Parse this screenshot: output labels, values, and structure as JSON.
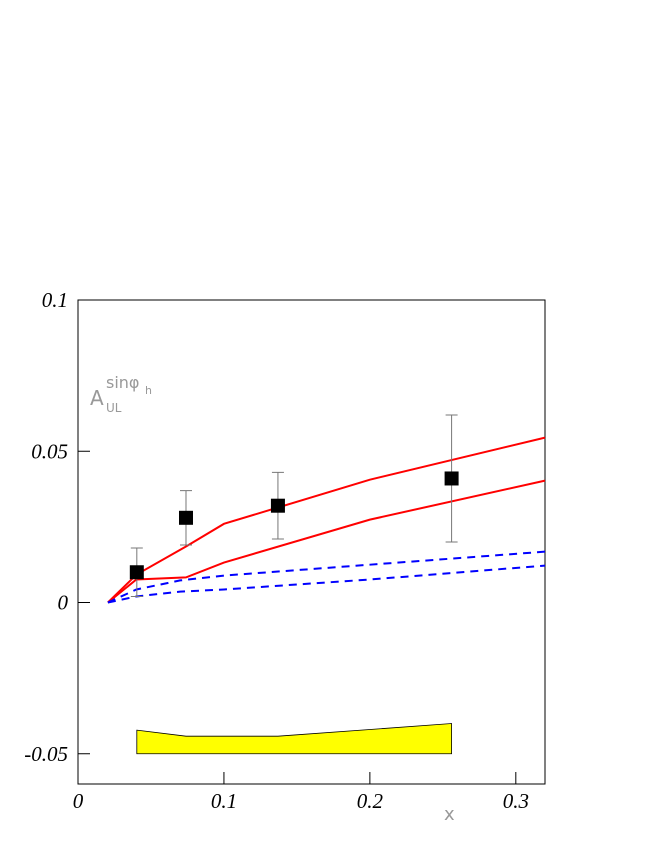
{
  "chart_data": {
    "type": "line",
    "y_label": {
      "base": "A",
      "sup": "sinφ",
      "sup_sub": "h",
      "sub": "UL"
    },
    "x_label": "x",
    "xlim": [
      0,
      0.32
    ],
    "ylim": [
      -0.06,
      0.1
    ],
    "xticks": [
      0,
      0.1,
      0.2,
      0.3
    ],
    "yticks": [
      -0.05,
      0,
      0.05,
      0.1
    ],
    "series": [
      {
        "color": "#ff0000",
        "dash": false,
        "x": [
          0.0205,
          0.04,
          0.074,
          0.1,
          0.2,
          0.32
        ],
        "values": [
          0,
          0.0092,
          0.0185,
          0.026,
          0.0406,
          0.0545
        ]
      },
      {
        "color": "#ff0000",
        "dash": false,
        "x": [
          0.0205,
          0.04,
          0.074,
          0.1,
          0.2,
          0.32
        ],
        "values": [
          0,
          0.0076,
          0.0083,
          0.0132,
          0.0274,
          0.0403
        ]
      },
      {
        "color": "#0000ff",
        "dash": true,
        "x": [
          0.0205,
          0.04,
          0.07,
          0.1,
          0.2,
          0.32
        ],
        "values": [
          0,
          0.0043,
          0.0073,
          0.0089,
          0.0125,
          0.0168
        ]
      },
      {
        "color": "#0000ff",
        "dash": true,
        "x": [
          0.0205,
          0.04,
          0.07,
          0.1,
          0.2,
          0.32
        ],
        "values": [
          0,
          0.002,
          0.0036,
          0.0043,
          0.0076,
          0.0122
        ]
      }
    ],
    "data_points": {
      "color": "#000000",
      "x": [
        0.0403,
        0.074,
        0.137,
        0.256
      ],
      "values": [
        0.01,
        0.028,
        0.032,
        0.041
      ],
      "errors": [
        0.008,
        0.009,
        0.011,
        0.021
      ]
    },
    "sys_band": {
      "color": "#ffff00",
      "base": -0.05,
      "x": [
        0.0403,
        0.074,
        0.137,
        0.256
      ],
      "values": [
        -0.0422,
        -0.0442,
        -0.0442,
        -0.04
      ]
    }
  }
}
